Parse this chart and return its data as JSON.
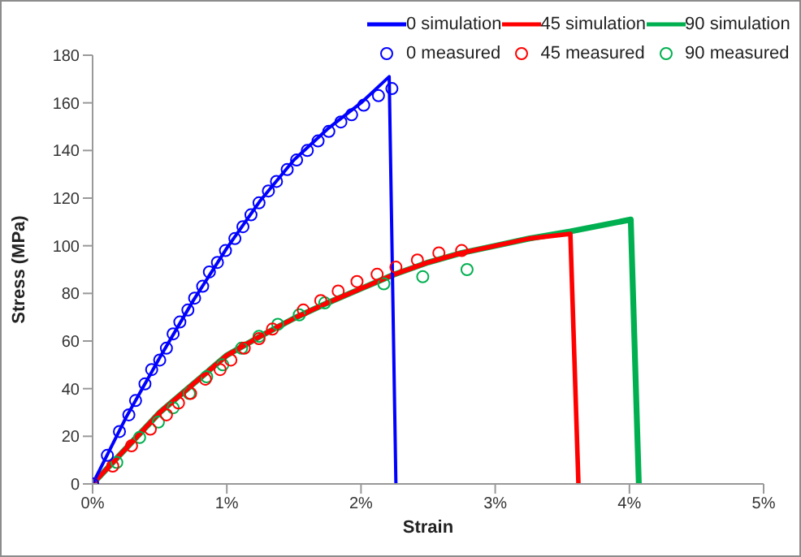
{
  "chart_data": {
    "type": "line",
    "xlabel": "Strain",
    "ylabel": "Stress (MPa)",
    "xlim": [
      0,
      5
    ],
    "ylim": [
      0,
      180
    ],
    "xticks": [
      {
        "value": 0,
        "label": "0%"
      },
      {
        "value": 1,
        "label": "1%"
      },
      {
        "value": 2,
        "label": "2%"
      },
      {
        "value": 3,
        "label": "3%"
      },
      {
        "value": 4,
        "label": "4%"
      },
      {
        "value": 5,
        "label": "5%"
      }
    ],
    "yticks": [
      0,
      20,
      40,
      60,
      80,
      100,
      120,
      140,
      160,
      180
    ],
    "legend": "top",
    "series": [
      {
        "name": "0 simulation",
        "marker": "none",
        "color": "#0000ff",
        "x": [
          0,
          0.25,
          0.5,
          0.75,
          1,
          1.25,
          1.5,
          1.75,
          2,
          2.21,
          2.26
        ],
        "values": [
          0,
          28,
          53,
          77,
          99,
          119,
          136,
          149,
          160,
          171,
          0
        ]
      },
      {
        "name": "45 simulation",
        "marker": "none",
        "color": "#ff0000",
        "x": [
          0,
          0.25,
          0.5,
          0.75,
          1,
          1.25,
          1.5,
          1.75,
          2,
          2.25,
          2.5,
          2.75,
          3,
          3.25,
          3.56,
          3.62
        ],
        "values": [
          0,
          15,
          30,
          42,
          54,
          62,
          69.5,
          76,
          82,
          88,
          93,
          97,
          100,
          103,
          105,
          0
        ]
      },
      {
        "name": "90 simulation",
        "marker": "none",
        "color": "#00b050",
        "x": [
          0,
          0.25,
          0.5,
          0.75,
          1,
          1.25,
          1.5,
          1.75,
          2,
          2.25,
          2.5,
          2.75,
          3,
          3.25,
          3.56,
          4.01,
          4.07
        ],
        "values": [
          0,
          15,
          30,
          42,
          54,
          62,
          69.5,
          76,
          82,
          88,
          93,
          97,
          100,
          103,
          106,
          111,
          0
        ]
      },
      {
        "name": "0 measured",
        "type": "scatter",
        "marker": "circle",
        "color": "#0000ff",
        "x": [
          0,
          0.11,
          0.2,
          0.27,
          0.32,
          0.39,
          0.44,
          0.5,
          0.55,
          0.6,
          0.65,
          0.71,
          0.76,
          0.82,
          0.87,
          0.93,
          0.99,
          1.06,
          1.12,
          1.18,
          1.24,
          1.31,
          1.37,
          1.45,
          1.52,
          1.6,
          1.68,
          1.76,
          1.85,
          1.93,
          2.02,
          2.13,
          2.23
        ],
        "values": [
          0,
          12,
          22,
          29,
          35,
          42,
          48,
          52,
          57,
          63,
          68,
          73,
          78,
          83,
          89,
          93,
          98,
          103,
          108,
          113,
          118,
          123,
          127,
          132,
          136,
          140,
          144,
          148,
          152,
          155,
          159,
          163,
          166
        ]
      },
      {
        "name": "45 measured",
        "type": "scatter",
        "marker": "circle",
        "color": "#ff0000",
        "x": [
          0,
          0.15,
          0.29,
          0.43,
          0.55,
          0.64,
          0.73,
          0.84,
          0.95,
          1.03,
          1.13,
          1.24,
          1.34,
          1.57,
          1.7,
          1.83,
          1.97,
          2.12,
          2.26,
          2.42,
          2.58,
          2.75
        ],
        "values": [
          0,
          7.5,
          16,
          23,
          29,
          34,
          38,
          44,
          48,
          52,
          57,
          61,
          65,
          73,
          77,
          81,
          85,
          88,
          91,
          94,
          97,
          98
        ]
      },
      {
        "name": "90 measured",
        "type": "scatter",
        "marker": "circle",
        "color": "#00b050",
        "x": [
          0,
          0.18,
          0.35,
          0.49,
          0.6,
          0.72,
          0.85,
          0.97,
          1.11,
          1.24,
          1.38,
          1.54,
          1.73,
          2.17,
          2.46,
          2.79
        ],
        "values": [
          0,
          9,
          19.5,
          26,
          32,
          38,
          45,
          50,
          57,
          62,
          67,
          71,
          76,
          84,
          87,
          90
        ]
      }
    ]
  }
}
